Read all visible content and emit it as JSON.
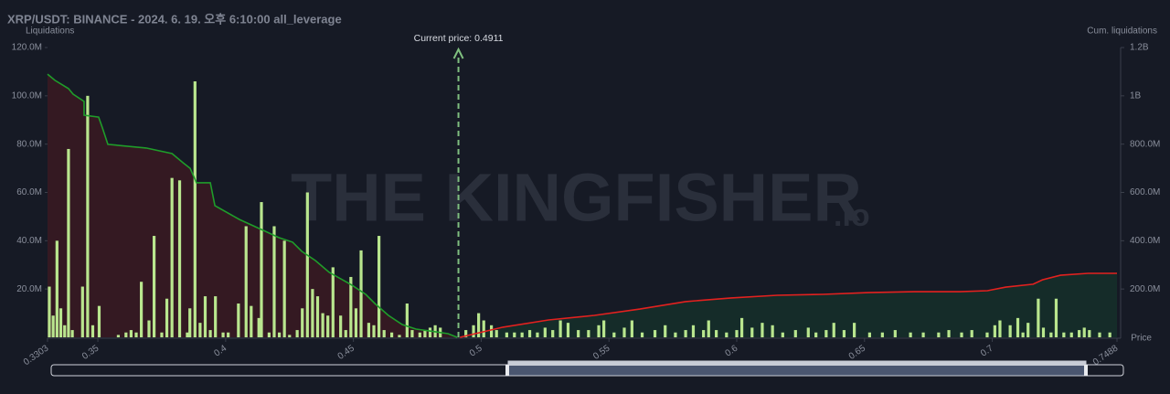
{
  "chart_data": {
    "type": "bar",
    "title": "XRP/USDT: BINANCE - 2024. 6. 19. 오후 6:10:00 all_leverage",
    "y_label": "Liquidations",
    "y2_label": "Cum. liquidations",
    "x_label": "Price",
    "watermark": "THE KINGFISHER",
    "watermark_suffix": ".io",
    "annotation": "Current price: 0.4911",
    "current_price": 0.4911,
    "xlim": [
      0.3303,
      0.7488
    ],
    "xticks": [
      0.3303,
      0.35,
      0.4,
      0.45,
      0.5,
      0.55,
      0.6,
      0.65,
      0.7,
      0.7488
    ],
    "ylim": [
      0,
      120
    ],
    "yticks": [
      {
        "value": 20,
        "label": "20.0M"
      },
      {
        "value": 40,
        "label": "40.0M"
      },
      {
        "value": 60,
        "label": "60.0M"
      },
      {
        "value": 80,
        "label": "80.0M"
      },
      {
        "value": 100,
        "label": "100.0M"
      },
      {
        "value": 120,
        "label": "120.0M"
      }
    ],
    "y2lim": [
      0,
      1200
    ],
    "y2ticks": [
      {
        "value": 200,
        "label": "200.0M"
      },
      {
        "value": 400,
        "label": "400.0M"
      },
      {
        "value": 600,
        "label": "600.0M"
      },
      {
        "value": 800,
        "label": "800.0M"
      },
      {
        "value": 1000,
        "label": "1B"
      },
      {
        "value": 1200,
        "label": "1.2B"
      }
    ],
    "bars": {
      "color": "#b9e68e",
      "x": [
        0.331,
        0.3325,
        0.334,
        0.3355,
        0.337,
        0.3385,
        0.34,
        0.344,
        0.346,
        0.348,
        0.3505,
        0.358,
        0.361,
        0.363,
        0.365,
        0.367,
        0.37,
        0.372,
        0.375,
        0.377,
        0.379,
        0.382,
        0.385,
        0.386,
        0.388,
        0.39,
        0.392,
        0.394,
        0.396,
        0.399,
        0.401,
        0.405,
        0.408,
        0.41,
        0.413,
        0.414,
        0.417,
        0.419,
        0.421,
        0.423,
        0.425,
        0.428,
        0.43,
        0.432,
        0.434,
        0.436,
        0.438,
        0.44,
        0.442,
        0.445,
        0.447,
        0.449,
        0.451,
        0.453,
        0.456,
        0.458,
        0.46,
        0.462,
        0.465,
        0.468,
        0.471,
        0.473,
        0.476,
        0.478,
        0.48,
        0.482,
        0.484,
        0.494,
        0.497,
        0.499,
        0.501,
        0.504,
        0.506,
        0.51,
        0.513,
        0.516,
        0.519,
        0.522,
        0.525,
        0.528,
        0.531,
        0.534,
        0.538,
        0.542,
        0.546,
        0.548,
        0.552,
        0.556,
        0.559,
        0.563,
        0.568,
        0.572,
        0.576,
        0.58,
        0.583,
        0.587,
        0.589,
        0.592,
        0.596,
        0.6,
        0.602,
        0.606,
        0.61,
        0.614,
        0.618,
        0.623,
        0.628,
        0.631,
        0.635,
        0.638,
        0.642,
        0.646,
        0.652,
        0.657,
        0.662,
        0.668,
        0.673,
        0.679,
        0.683,
        0.688,
        0.692,
        0.698,
        0.701,
        0.703,
        0.707,
        0.71,
        0.712,
        0.714,
        0.718,
        0.72,
        0.723,
        0.725,
        0.728,
        0.731,
        0.734,
        0.736,
        0.738,
        0.742,
        0.746
      ],
      "values": [
        21,
        9,
        40,
        12,
        5,
        78,
        3,
        21,
        100,
        5,
        13,
        1,
        2,
        3,
        2,
        23,
        7,
        42,
        2,
        16,
        66,
        65,
        2,
        12,
        106,
        6,
        17,
        3,
        17,
        2,
        2,
        14,
        46,
        13,
        8,
        56,
        2,
        46,
        2,
        40,
        1,
        3,
        12,
        60,
        20,
        17,
        10,
        9,
        29,
        9,
        3,
        25,
        12,
        36,
        6,
        5,
        42,
        3,
        2,
        1,
        14,
        3,
        2,
        3,
        4,
        5,
        4,
        3,
        5,
        10,
        7,
        5,
        3,
        2,
        2,
        2,
        3,
        2,
        4,
        3,
        7,
        6,
        3,
        3,
        5,
        7,
        2,
        4,
        7,
        2,
        3,
        5,
        2,
        3,
        5,
        3,
        7,
        3,
        2,
        3,
        8,
        4,
        6,
        5,
        2,
        3,
        4,
        2,
        3,
        6,
        3,
        6,
        2,
        2,
        3,
        2,
        2,
        2,
        3,
        2,
        3,
        2,
        5,
        7,
        5,
        8,
        2,
        6,
        16,
        4,
        2,
        16,
        2,
        2,
        3,
        4,
        3,
        2,
        2
      ]
    },
    "lines": [
      {
        "axis": "y2",
        "color": "#1f9d2a",
        "fill": "#3a1a22",
        "x": [
          0.3303,
          0.3332,
          0.3385,
          0.3403,
          0.3446,
          0.3446,
          0.3503,
          0.3518,
          0.3539,
          0.3689,
          0.379,
          0.3833,
          0.3861,
          0.3886,
          0.394,
          0.3958,
          0.4054,
          0.4155,
          0.4208,
          0.4262,
          0.4298,
          0.4351,
          0.4405,
          0.4494,
          0.4548,
          0.4584,
          0.4637,
          0.4691,
          0.4745,
          0.4799,
          0.487,
          0.4906
        ],
        "values": [
          1090,
          1064,
          1030,
          1007,
          977,
          920,
          912,
          867,
          799,
          784,
          761,
          723,
          700,
          640,
          640,
          545,
          488,
          439,
          413,
          394,
          356,
          318,
          269,
          216,
          178,
          140,
          91,
          53,
          34,
          26,
          15,
          0
        ]
      },
      {
        "axis": "y2",
        "color": "#e3211f",
        "fill": "#15302a",
        "x": [
          0.4917,
          0.4977,
          0.5085,
          0.5264,
          0.5443,
          0.5621,
          0.58,
          0.5979,
          0.6158,
          0.6337,
          0.6516,
          0.6695,
          0.6874,
          0.6981,
          0.7053,
          0.716,
          0.7196,
          0.7267,
          0.7375,
          0.7488
        ],
        "values": [
          0,
          15,
          42,
          72,
          91,
          117,
          148,
          163,
          174,
          178,
          185,
          189,
          189,
          193,
          208,
          220,
          238,
          257,
          265,
          265
        ]
      }
    ]
  }
}
